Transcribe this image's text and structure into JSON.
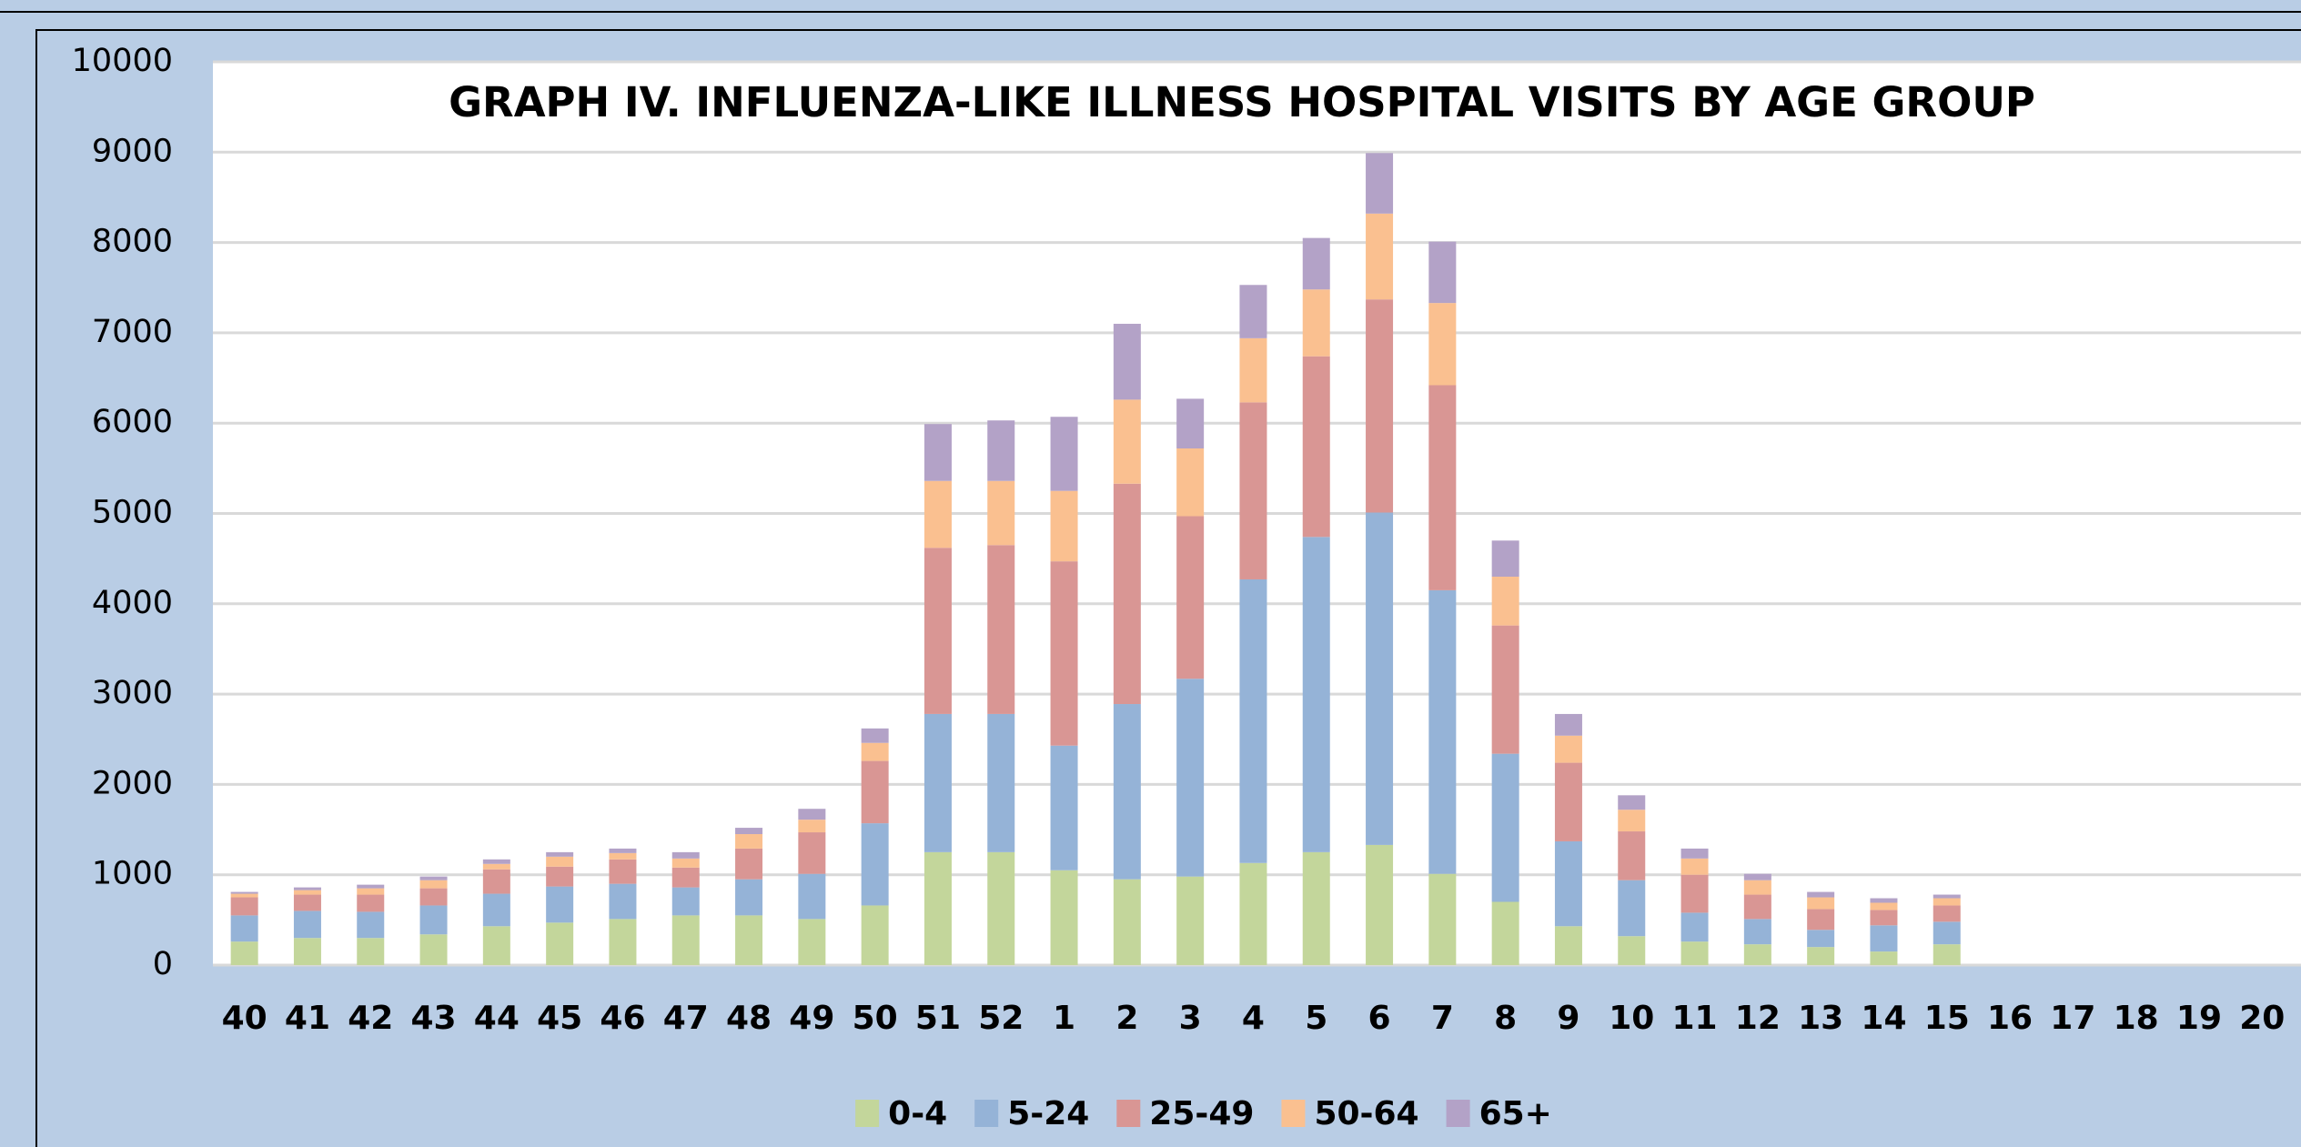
{
  "chart_data": {
    "type": "bar",
    "stacked": true,
    "title": "GRAPH IV. INFLUENZA-LIKE ILLNESS HOSPITAL VISITS BY AGE GROUP",
    "categories": [
      "40",
      "41",
      "42",
      "43",
      "44",
      "45",
      "46",
      "47",
      "48",
      "49",
      "50",
      "51",
      "52",
      "1",
      "2",
      "3",
      "4",
      "5",
      "6",
      "7",
      "8",
      "9",
      "10",
      "11",
      "12",
      "13",
      "14",
      "15",
      "16",
      "17",
      "18",
      "19",
      "20"
    ],
    "series": [
      {
        "name": "0-4",
        "color": "#c3d69b",
        "values": [
          260,
          300,
          300,
          340,
          430,
          470,
          510,
          550,
          550,
          510,
          660,
          1250,
          1250,
          1050,
          950,
          980,
          1130,
          1250,
          1330,
          1010,
          700,
          430,
          320,
          260,
          230,
          200,
          150,
          230,
          null,
          null,
          null,
          null,
          null
        ]
      },
      {
        "name": "5-24",
        "color": "#95b3d7",
        "values": [
          290,
          300,
          290,
          320,
          360,
          400,
          390,
          310,
          400,
          500,
          910,
          1530,
          1530,
          1380,
          1940,
          2190,
          3140,
          3490,
          3680,
          3140,
          1640,
          940,
          620,
          320,
          280,
          190,
          290,
          250,
          null,
          null,
          null,
          null,
          null
        ]
      },
      {
        "name": "25-49",
        "color": "#d99694",
        "values": [
          200,
          180,
          190,
          190,
          270,
          220,
          270,
          220,
          340,
          460,
          690,
          1840,
          1870,
          2040,
          2440,
          1800,
          1960,
          2000,
          2360,
          2270,
          1420,
          870,
          540,
          420,
          270,
          230,
          170,
          180,
          null,
          null,
          null,
          null,
          null
        ]
      },
      {
        "name": "50-64",
        "color": "#fac090",
        "values": [
          40,
          50,
          70,
          90,
          60,
          110,
          70,
          100,
          160,
          140,
          200,
          740,
          710,
          780,
          930,
          750,
          710,
          740,
          950,
          910,
          540,
          300,
          240,
          180,
          160,
          130,
          80,
          80,
          null,
          null,
          null,
          null,
          null
        ]
      },
      {
        "name": "65+",
        "color": "#b3a2c7",
        "values": [
          20,
          30,
          40,
          40,
          50,
          50,
          50,
          70,
          70,
          120,
          160,
          630,
          670,
          820,
          840,
          550,
          590,
          570,
          670,
          680,
          400,
          240,
          160,
          110,
          70,
          60,
          50,
          40,
          null,
          null,
          null,
          null,
          null
        ]
      }
    ],
    "ylim": [
      0,
      10000
    ],
    "yticks": [
      0,
      1000,
      2000,
      3000,
      4000,
      5000,
      6000,
      7000,
      8000,
      9000,
      10000
    ],
    "grid": true,
    "legend": "bottom"
  }
}
